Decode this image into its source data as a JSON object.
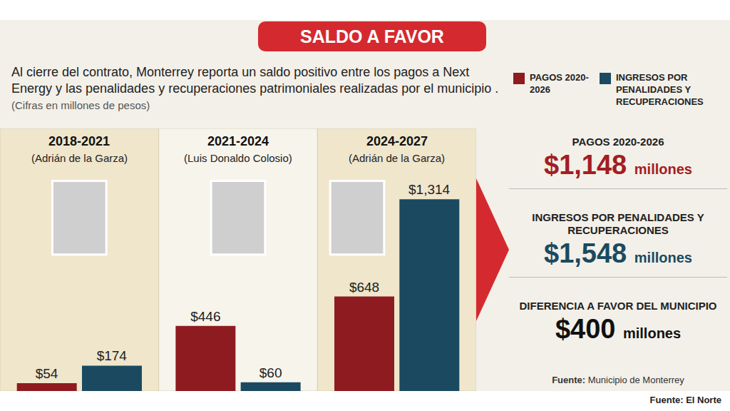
{
  "title": "SALDO A FAVOR",
  "subtitle": "Al cierre del contrato, Monterrey reporta un saldo positivo entre los pagos a Next Energy y las penalidades y recuperaciones patrimoniales realizadas por el municipio .",
  "units_note": "(Cifras en millones de pesos)",
  "chart_data": {
    "type": "bar",
    "categories": [
      "2018-2021",
      "2021-2024",
      "2024-2027"
    ],
    "category_notes": [
      "(Adrián de la Garza)",
      "(Luis Donaldo Colosio)",
      "(Adrián de la Garza)"
    ],
    "series": [
      {
        "name": "PAGOS 2020-2026",
        "color": "#8e1b1f",
        "values": [
          54,
          446,
          648
        ],
        "value_labels": [
          "$54",
          "$446",
          "$648"
        ]
      },
      {
        "name": "INGRESOS POR PENALIDADES Y RECUPERACIONES",
        "color": "#1b4a60",
        "values": [
          174,
          60,
          1314
        ],
        "value_labels": [
          "$174",
          "$60",
          "$1,314"
        ]
      }
    ],
    "ylim": [
      0,
      1800
    ],
    "tick_labels": false,
    "data_labels": true,
    "grid": false,
    "legend": "top right"
  },
  "summary": {
    "items": [
      {
        "label": "PAGOS 2020-2026",
        "value": "$1,148",
        "unit": "millones",
        "color": "#a31d22"
      },
      {
        "label": "INGRESOS POR PENALIDADES Y RECUPERACIONES",
        "value": "$1,548",
        "unit": "millones",
        "color": "#1b4a60"
      },
      {
        "label": "DIFERENCIA A FAVOR DEL MUNICIPIO",
        "value": "$400",
        "unit": "millones",
        "color": "#111111"
      }
    ],
    "source": {
      "label": "Fuente:",
      "text": "Municipio de Monterrey"
    }
  },
  "credit": "Fuente: El Norte"
}
